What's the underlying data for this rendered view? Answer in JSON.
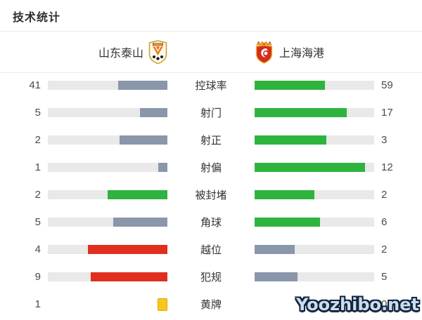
{
  "title": "技术统计",
  "teams": {
    "home": {
      "name": "山东泰山"
    },
    "away": {
      "name": "上海海港"
    }
  },
  "colors": {
    "track": "#e9e9e9",
    "gray": "#8a96aa",
    "green": "#2eb43e",
    "red": "#e02f1e",
    "card_fill": "#f9c71c",
    "card_border": "#dfa606",
    "number_text": "#4a4a4a",
    "label_text": "#333333"
  },
  "stats": [
    {
      "label": "控球率",
      "home": 41,
      "away": 59,
      "home_color": "gray",
      "away_color": "green",
      "home_style": "bar",
      "away_style": "bar"
    },
    {
      "label": "射门",
      "home": 5,
      "away": 17,
      "home_color": "gray",
      "away_color": "green",
      "home_style": "bar",
      "away_style": "bar"
    },
    {
      "label": "射正",
      "home": 2,
      "away": 3,
      "home_color": "gray",
      "away_color": "green",
      "home_style": "bar",
      "away_style": "bar"
    },
    {
      "label": "射偏",
      "home": 1,
      "away": 12,
      "home_color": "gray",
      "away_color": "green",
      "home_style": "bar",
      "away_style": "bar"
    },
    {
      "label": "被封堵",
      "home": 2,
      "away": 2,
      "home_color": "green",
      "away_color": "green",
      "home_style": "bar",
      "away_style": "bar"
    },
    {
      "label": "角球",
      "home": 5,
      "away": 6,
      "home_color": "gray",
      "away_color": "green",
      "home_style": "bar",
      "away_style": "bar"
    },
    {
      "label": "越位",
      "home": 4,
      "away": 2,
      "home_color": "red",
      "away_color": "gray",
      "home_style": "bar",
      "away_style": "bar"
    },
    {
      "label": "犯规",
      "home": 9,
      "away": 5,
      "home_color": "red",
      "away_color": "gray",
      "home_style": "bar",
      "away_style": "bar"
    },
    {
      "label": "黄牌",
      "home": 1,
      "away": 0,
      "home_color": "card",
      "away_color": "none",
      "home_style": "card",
      "away_style": "none"
    }
  ],
  "chart_data": {
    "type": "bar",
    "title": "技术统计",
    "orientation": "horizontal-paired",
    "categories": [
      "控球率",
      "射门",
      "射正",
      "射偏",
      "被封堵",
      "角球",
      "越位",
      "犯规",
      "黄牌"
    ],
    "series": [
      {
        "name": "山东泰山",
        "values": [
          41,
          5,
          2,
          1,
          2,
          5,
          4,
          9,
          1
        ]
      },
      {
        "name": "上海海港",
        "values": [
          59,
          17,
          3,
          12,
          2,
          6,
          2,
          5,
          0
        ]
      }
    ],
    "note": "each bar fill proportion = value / (home value + away value); home bars fill from right, away bars fill from left"
  },
  "watermark": "Yoozhibo.net"
}
